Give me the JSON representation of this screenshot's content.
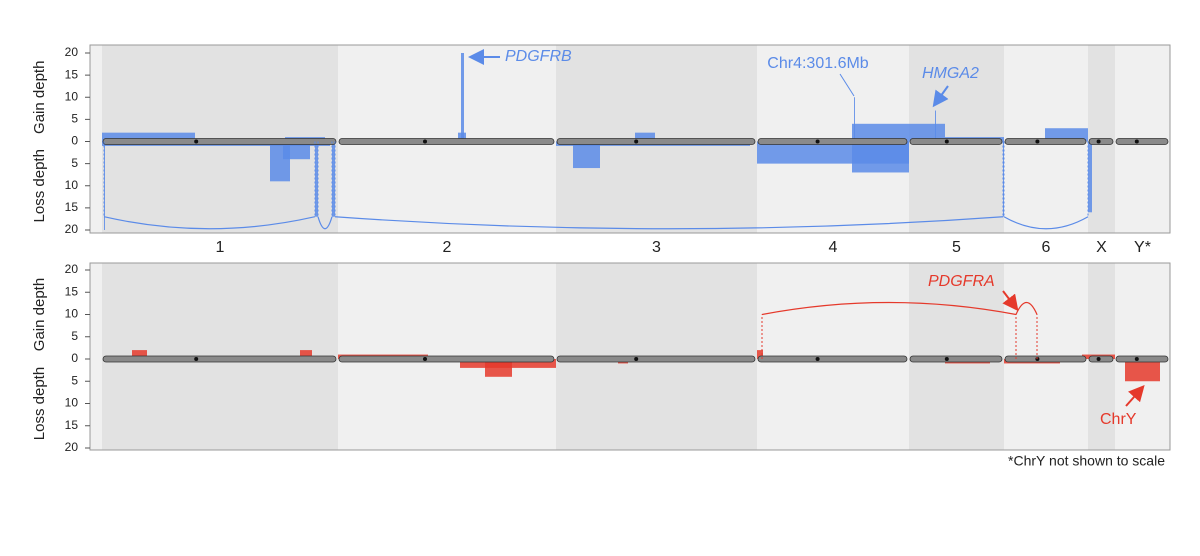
{
  "chart_data": [
    {
      "type": "bar",
      "color": "#5b8be8",
      "ylabel_gain": "Gain depth",
      "ylabel_loss": "Loss depth",
      "xlim": [
        0,
        1080
      ],
      "ylim": [
        -20,
        20
      ],
      "yticks": [
        20,
        15,
        10,
        5,
        0,
        {
          "value": -5,
          "label": "5"
        },
        {
          "value": -10,
          "label": "10"
        },
        {
          "value": -15,
          "label": "15"
        },
        {
          "value": -20,
          "label": "20"
        }
      ],
      "segments": [
        {
          "start": 12,
          "end": 105,
          "value": 2
        },
        {
          "start": 12,
          "end": 240,
          "value": -1
        },
        {
          "start": 180,
          "end": 200,
          "value": -9
        },
        {
          "start": 193,
          "end": 220,
          "value": -4
        },
        {
          "start": 195,
          "end": 235,
          "value": 1
        },
        {
          "start": 368,
          "end": 376,
          "value": 2
        },
        {
          "start": 371,
          "end": 374,
          "value": 20
        },
        {
          "start": 466,
          "end": 660,
          "value": -1
        },
        {
          "start": 483,
          "end": 510,
          "value": -6
        },
        {
          "start": 545,
          "end": 565,
          "value": 2
        },
        {
          "start": 667,
          "end": 819,
          "value": -5
        },
        {
          "start": 762,
          "end": 819,
          "value": 4
        },
        {
          "start": 764,
          "end": 765,
          "value": 10
        },
        {
          "start": 762,
          "end": 819,
          "value": -7
        },
        {
          "start": 819,
          "end": 855,
          "value": 4
        },
        {
          "start": 845,
          "end": 846,
          "value": 7
        },
        {
          "start": 855,
          "end": 914,
          "value": 1
        },
        {
          "start": 955,
          "end": 998,
          "value": 3
        },
        {
          "start": 998,
          "end": 1002,
          "value": -16
        },
        {
          "start": 14,
          "end": 15,
          "value": -20
        },
        {
          "start": 225,
          "end": 228,
          "value": -17
        },
        {
          "start": 242,
          "end": 245,
          "value": -17
        },
        {
          "start": 913,
          "end": 914,
          "value": -17
        }
      ],
      "arcs": [
        {
          "from": 14,
          "to": 225,
          "depth": -17
        },
        {
          "from": 228,
          "to": 242,
          "depth": -17
        },
        {
          "from": 245,
          "to": 913,
          "depth": -17
        },
        {
          "from": 914,
          "to": 998,
          "depth": -17
        }
      ],
      "annotations": [
        "PDGFRB",
        "Chr4:301.6Mb",
        "HMGA2"
      ]
    },
    {
      "type": "bar",
      "color": "#e5392b",
      "ylabel_gain": "Gain depth",
      "ylabel_loss": "Loss depth",
      "xlim": [
        0,
        1080
      ],
      "ylim": [
        -20,
        20
      ],
      "yticks": [
        20,
        15,
        10,
        5,
        0,
        {
          "value": -5,
          "label": "5"
        },
        {
          "value": -10,
          "label": "10"
        },
        {
          "value": -15,
          "label": "15"
        },
        {
          "value": -20,
          "label": "20"
        }
      ],
      "segments": [
        {
          "start": 42,
          "end": 57,
          "value": 2
        },
        {
          "start": 210,
          "end": 222,
          "value": 2
        },
        {
          "start": 248,
          "end": 338,
          "value": 1
        },
        {
          "start": 370,
          "end": 466,
          "value": -2
        },
        {
          "start": 395,
          "end": 422,
          "value": -4
        },
        {
          "start": 528,
          "end": 538,
          "value": -1
        },
        {
          "start": 667,
          "end": 673,
          "value": 2
        },
        {
          "start": 855,
          "end": 900,
          "value": -1
        },
        {
          "start": 914,
          "end": 970,
          "value": -1
        },
        {
          "start": 992,
          "end": 1025,
          "value": 1
        },
        {
          "start": 1035,
          "end": 1070,
          "value": -5
        }
      ],
      "arcs": [
        {
          "from": 672,
          "to": 926,
          "depth": 10
        },
        {
          "from": 926,
          "to": 947,
          "depth": 10
        }
      ],
      "annotations": [
        "PDGFRA",
        "ChrY"
      ]
    }
  ],
  "chromosomes": {
    "labels": [
      "1",
      "2",
      "3",
      "4",
      "5",
      "6",
      "X",
      "Y*"
    ],
    "bounds": [
      12,
      248,
      466,
      667,
      819,
      914,
      998,
      1025,
      1080
    ]
  },
  "footnote": "*ChrY not shown to scale"
}
